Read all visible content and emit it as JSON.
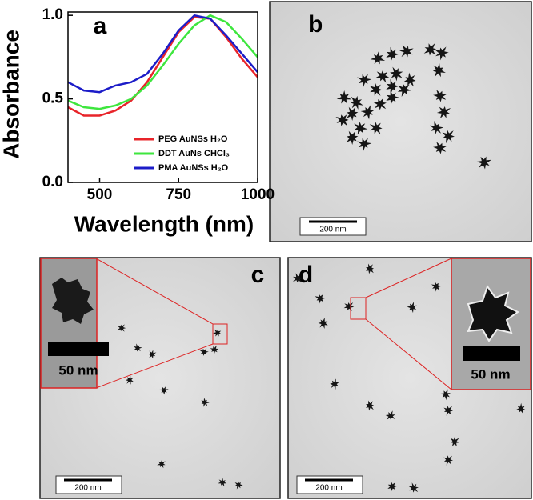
{
  "chart_data": {
    "type": "line",
    "panel_label": "a",
    "xlabel": "Wavelength (nm)",
    "ylabel": "Absorbance",
    "x": [
      400,
      450,
      500,
      550,
      600,
      650,
      700,
      750,
      800,
      850,
      900,
      950,
      1000
    ],
    "series": [
      {
        "name": "PEG AuNSs H₂O",
        "color": "#e8242a",
        "values": [
          0.45,
          0.4,
          0.4,
          0.43,
          0.49,
          0.6,
          0.75,
          0.9,
          0.99,
          0.98,
          0.87,
          0.74,
          0.63
        ]
      },
      {
        "name": "DDT AuNs CHCl₃",
        "color": "#3ee63e",
        "values": [
          0.49,
          0.45,
          0.44,
          0.46,
          0.5,
          0.58,
          0.7,
          0.83,
          0.94,
          1.0,
          0.96,
          0.86,
          0.75
        ]
      },
      {
        "name": "PMA AuNSs H₂O",
        "color": "#1c1cc8",
        "values": [
          0.6,
          0.55,
          0.54,
          0.58,
          0.6,
          0.65,
          0.77,
          0.91,
          1.0,
          0.98,
          0.88,
          0.77,
          0.66
        ]
      }
    ],
    "xlim": [
      400,
      1000
    ],
    "xticks": [
      500,
      750,
      1000
    ],
    "ylim": [
      0,
      1.02
    ],
    "yticks": [
      {
        "value": 0,
        "label": "0.0"
      },
      0.5,
      {
        "value": 1,
        "label": "1.0"
      }
    ]
  },
  "panels": [
    {
      "label": "b",
      "scale_bar": "200 nm"
    },
    {
      "label": "c",
      "scale_bar": "200 nm",
      "inset_scale_bar": "50 nm"
    },
    {
      "label": "d",
      "scale_bar": "200 nm",
      "inset_scale_bar": "50 nm"
    }
  ]
}
